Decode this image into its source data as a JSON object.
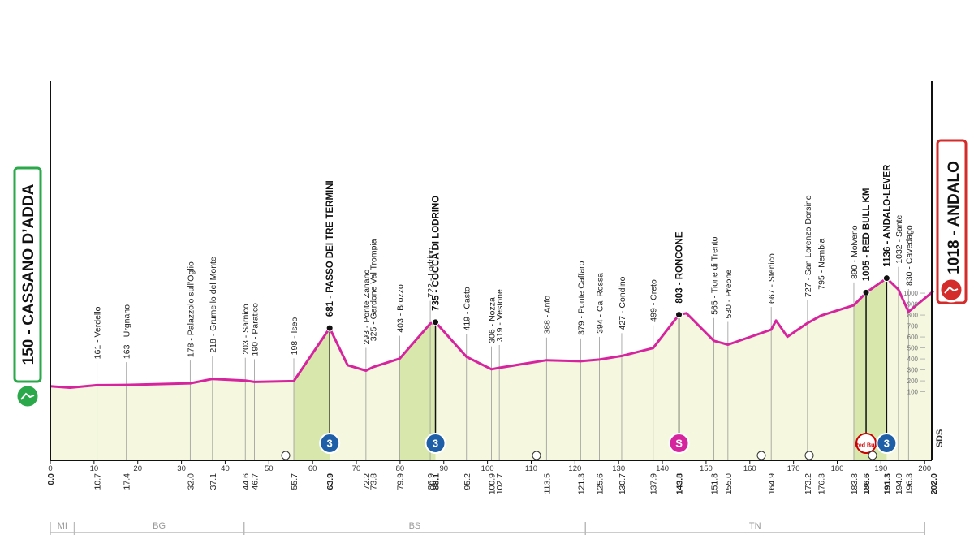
{
  "chart_data": {
    "type": "profile",
    "start": {
      "label": "150 - CASSANO D’ADDA",
      "color": "#2aa84a"
    },
    "finish": {
      "label": "1018 - ANDALO",
      "color": "#d42b2b"
    },
    "x": [
      {
        "value": 0,
        "label": "0.0"
      },
      4.5,
      10.7,
      17.4,
      {
        "value": 32,
        "label": "32.0"
      },
      37.1,
      44.6,
      46.7,
      55.7,
      63.9,
      68,
      72.2,
      73.8,
      79.9,
      86.9,
      88.1,
      95.2,
      100.9,
      102.7,
      113.5,
      121.3,
      125.6,
      130.7,
      137.9,
      143.8,
      145.5,
      151.8,
      {
        "value": 155,
        "label": "155.0"
      },
      164.9,
      166,
      168.6,
      173.2,
      176.3,
      183.8,
      186.6,
      191.3,
      {
        "value": 194,
        "label": "194.0"
      },
      196.3,
      {
        "value": 202,
        "label": "202.0"
      }
    ],
    "values": [
      150,
      138,
      161,
      163,
      178,
      218,
      203,
      190,
      198,
      681,
      343,
      293,
      325,
      403,
      722,
      735,
      419,
      306,
      319,
      388,
      379,
      394,
      427,
      499,
      803,
      817,
      565,
      530,
      667,
      750,
      602,
      727,
      795,
      890,
      1005,
      1136,
      1032,
      830,
      1018
    ],
    "labels": [
      null,
      null,
      "161 - Verdello",
      "163 - Urgnano",
      "178 - Palazzolo sull’Oglio",
      "218 - Grumello del Monte",
      "203 - Sarnico",
      "190 - Paratico",
      "198 - Iseo",
      "681 - PASSO DEI TRE TERMINI",
      null,
      "293 - Ponte Zanano",
      "325 - Gardone Val Trompia",
      "403 - Brozzo",
      "722 - Lodrino",
      "735 - COCCA DI LODRINO",
      "419 - Casto",
      "306 - Nozza",
      "319 - Vestone",
      "388 - Anfo",
      "379 - Ponte Caffaro",
      "394 - Ca’ Rossa",
      "427 - Condino",
      "499 - Creto",
      "803 - RONCONE",
      null,
      "565 - Tione di Trento",
      "530 - Preone",
      "667 - Stenico",
      null,
      null,
      "727 - San Lorenzo Dorsino",
      "795 - Nembia",
      "890 - Molveno",
      "1005 - RED BULL KM",
      "1136 - ANDALO-LEVER",
      "1032 - Santel",
      "830 - Cavedago",
      null
    ],
    "styles": [
      "start",
      null,
      "plain",
      "plain",
      "plain",
      "plain",
      "plain",
      "plain",
      "plain",
      "bold",
      null,
      "plain",
      "plain",
      "plain",
      "plain",
      "bold",
      "plain",
      "plain",
      "plain",
      "plain",
      "plain",
      "plain",
      "plain",
      "plain",
      "bold",
      null,
      "plain",
      "plain",
      "plain",
      null,
      null,
      "plain",
      "plain",
      "plain",
      "bold",
      "bold",
      "plain",
      "plain",
      "finish"
    ],
    "markers": [
      null,
      null,
      null,
      null,
      null,
      null,
      null,
      null,
      null,
      "3",
      null,
      null,
      null,
      null,
      null,
      "3",
      null,
      null,
      null,
      null,
      null,
      null,
      null,
      null,
      "S",
      null,
      null,
      null,
      null,
      null,
      null,
      null,
      null,
      null,
      "Red Bull",
      "3",
      null,
      null,
      null
    ],
    "shaded": [
      [
        55.7,
        63.9
      ],
      [
        79.9,
        88.1
      ],
      [
        183.8,
        191.3
      ]
    ],
    "line_color": "#d6249f",
    "area_color": "#f5f8df",
    "shade_color": "#d8e8ad",
    "xlim": [
      0,
      202
    ],
    "xticks": [
      0,
      10,
      20,
      30,
      40,
      50,
      60,
      70,
      80,
      90,
      100,
      110,
      120,
      130,
      140,
      150,
      160,
      170,
      180,
      190,
      200
    ],
    "ylim": [
      -525,
      2000
    ],
    "yticks": [
      100,
      200,
      300,
      400,
      500,
      600,
      700,
      800,
      900,
      1000
    ],
    "regions": [
      {
        "name": "MI",
        "from": 0,
        "to": 5.5
      },
      {
        "name": "BG",
        "from": 5.5,
        "to": 44.3
      },
      {
        "name": "BS",
        "from": 44.3,
        "to": 122.4
      },
      {
        "name": "TN",
        "from": 122.4,
        "to": 200
      }
    ]
  }
}
